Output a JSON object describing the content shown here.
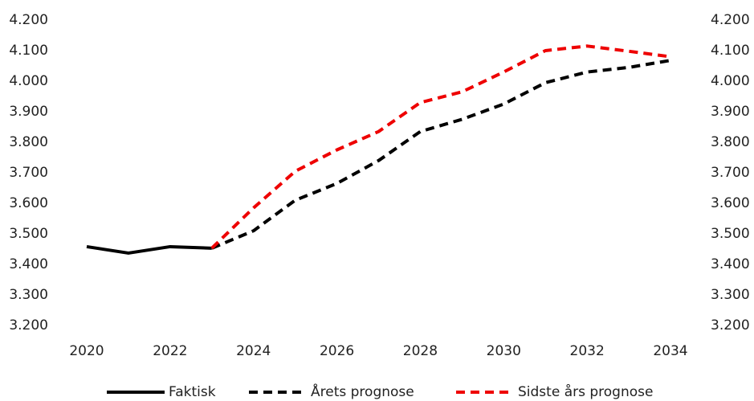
{
  "chart_data": {
    "type": "line",
    "x": [
      2020,
      2021,
      2022,
      2023,
      2024,
      2025,
      2026,
      2027,
      2028,
      2029,
      2030,
      2031,
      2032,
      2033,
      2034
    ],
    "xlim": [
      2020,
      2034
    ],
    "xticks": [
      2020,
      2022,
      2024,
      2026,
      2028,
      2030,
      2032,
      2034
    ],
    "ylim": [
      3200,
      4200
    ],
    "yticks": [
      {
        "value": 3200,
        "label": "3.200"
      },
      {
        "value": 3300,
        "label": "3.300"
      },
      {
        "value": 3400,
        "label": "3.400"
      },
      {
        "value": 3500,
        "label": "3.500"
      },
      {
        "value": 3600,
        "label": "3.600"
      },
      {
        "value": 3700,
        "label": "3.700"
      },
      {
        "value": 3800,
        "label": "3.800"
      },
      {
        "value": 3900,
        "label": "3.900"
      },
      {
        "value": 4000,
        "label": "4.000"
      },
      {
        "value": 4100,
        "label": "4.100"
      },
      {
        "value": 4200,
        "label": "4.200"
      }
    ],
    "y2lim": [
      3200,
      4200
    ],
    "y2ticks": [
      {
        "value": 3200,
        "label": "3.200"
      },
      {
        "value": 3300,
        "label": "3.300"
      },
      {
        "value": 3400,
        "label": "3.400"
      },
      {
        "value": 3500,
        "label": "3.500"
      },
      {
        "value": 3600,
        "label": "3.600"
      },
      {
        "value": 3700,
        "label": "3.700"
      },
      {
        "value": 3800,
        "label": "3.800"
      },
      {
        "value": 3900,
        "label": "3.900"
      },
      {
        "value": 4000,
        "label": "4.000"
      },
      {
        "value": 4100,
        "label": "4.100"
      },
      {
        "value": 4200,
        "label": "4.200"
      }
    ],
    "grid": false,
    "legend": "bottom",
    "series": [
      {
        "name": "Faktisk",
        "color": "#000000",
        "dashed": false,
        "values": [
          3458,
          3437,
          3458,
          3453,
          null,
          null,
          null,
          null,
          null,
          null,
          null,
          null,
          null,
          null,
          null
        ]
      },
      {
        "name": "Årets prognose",
        "color": "#000000",
        "dashed": true,
        "values": [
          null,
          null,
          null,
          3453,
          3510,
          3610,
          3665,
          3740,
          3835,
          3875,
          3925,
          3995,
          4030,
          4045,
          4068
        ]
      },
      {
        "name": "Sidste års prognose",
        "color": "#ee0000",
        "dashed": true,
        "values": [
          null,
          null,
          null,
          3453,
          3585,
          3705,
          3775,
          3835,
          3930,
          3965,
          4030,
          4100,
          4115,
          4098,
          4080
        ]
      }
    ]
  }
}
